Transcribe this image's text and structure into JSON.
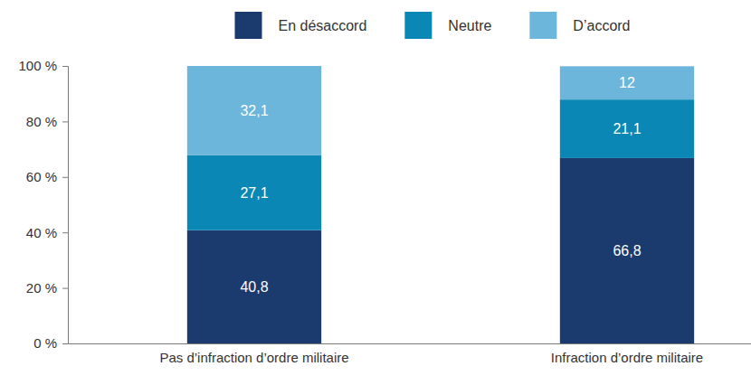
{
  "chart_data": {
    "type": "bar",
    "stacked": true,
    "data_labels": true,
    "grid": false,
    "legend": "top",
    "categories": [
      "Pas d’infraction d’ordre militaire",
      "Infraction d’ordre militaire"
    ],
    "series": [
      {
        "name": "En désaccord",
        "color": "#1b3a6e",
        "values": [
          40.8,
          66.8
        ],
        "value_labels": [
          "40,8",
          "66,8"
        ]
      },
      {
        "name": "Neutre",
        "color": "#0a87b4",
        "values": [
          27.1,
          21.1
        ],
        "value_labels": [
          "27,1",
          "21,1"
        ]
      },
      {
        "name": "D’accord",
        "color": "#6cb6db",
        "values": [
          32.1,
          12
        ],
        "value_labels": [
          "32,1",
          "12"
        ]
      }
    ],
    "ylim": [
      0,
      100
    ],
    "yticks": [
      {
        "value": 0,
        "label": "0 %"
      },
      {
        "value": 20,
        "label": "20 %"
      },
      {
        "value": 40,
        "label": "40 %"
      },
      {
        "value": 60,
        "label": "60 %"
      },
      {
        "value": 80,
        "label": "80 %"
      },
      {
        "value": 100,
        "label": "100 %"
      }
    ]
  }
}
